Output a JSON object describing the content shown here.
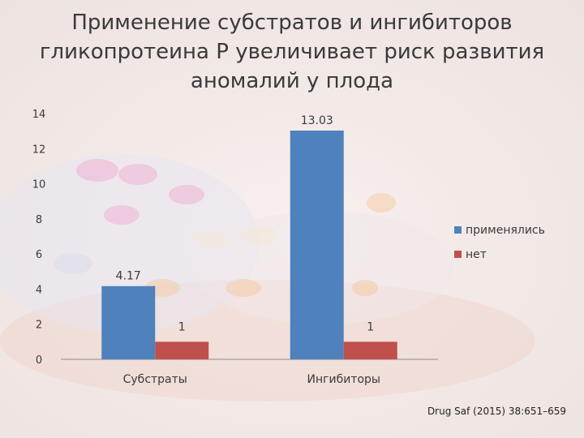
{
  "title_lines": [
    "Применение субстратов и ингибиторов",
    "гликопротеина Р увеличивает риск развития",
    "аномалий у плода"
  ],
  "source": "Drug Saf (2015) 38:651–659",
  "colors": {
    "series1": "#4f81bd",
    "series2": "#c0504d",
    "text": "#3a3a3a"
  },
  "chart_data": {
    "type": "bar",
    "categories": [
      "Субстраты",
      "Ингибиторы"
    ],
    "series": [
      {
        "name": "применялись",
        "values": [
          4.17,
          13.03
        ],
        "labels": [
          "4.17",
          "13.03"
        ]
      },
      {
        "name": "нет",
        "values": [
          1,
          1
        ],
        "labels": [
          "1",
          "1"
        ]
      }
    ],
    "ylim": [
      0,
      14
    ],
    "yticks": [
      0,
      2,
      4,
      6,
      8,
      10,
      12,
      14
    ],
    "legend": "right",
    "grid": false
  }
}
